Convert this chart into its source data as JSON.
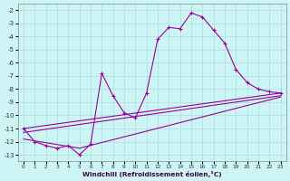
{
  "xlabel": "Windchill (Refroidissement éolien,°C)",
  "background_color": "#cef5f5",
  "grid_color": "#aadddd",
  "line_color": "#990099",
  "ylim": [
    -13.5,
    -1.5
  ],
  "xlim": [
    -0.5,
    23.5
  ],
  "yticks": [
    -2,
    -3,
    -4,
    -5,
    -6,
    -7,
    -8,
    -9,
    -10,
    -11,
    -12,
    -13
  ],
  "xticks": [
    0,
    1,
    2,
    3,
    4,
    5,
    6,
    7,
    8,
    9,
    10,
    11,
    12,
    13,
    14,
    15,
    16,
    17,
    18,
    19,
    20,
    21,
    22,
    23
  ],
  "line1_x": [
    0,
    1,
    2,
    3,
    4,
    5,
    6,
    7,
    8,
    9,
    10,
    11,
    12,
    13,
    14,
    15,
    16,
    17,
    18,
    19,
    20,
    21,
    22,
    23
  ],
  "line1_y": [
    -11.0,
    -12.0,
    -12.3,
    -12.5,
    -12.3,
    -13.0,
    -12.2,
    -6.8,
    -8.5,
    -9.8,
    -10.2,
    -8.3,
    -4.2,
    -3.3,
    -3.4,
    -2.2,
    -2.5,
    -3.5,
    -4.5,
    -6.5,
    -7.5,
    -8.0,
    -8.2,
    -8.3
  ],
  "line2_x": [
    0,
    23
  ],
  "line2_y": [
    -11.0,
    -8.3
  ],
  "line3_x": [
    0,
    23
  ],
  "line3_y": [
    -11.3,
    -8.5
  ],
  "line4_x": [
    0,
    5,
    23
  ],
  "line4_y": [
    -11.8,
    -12.5,
    -8.6
  ]
}
